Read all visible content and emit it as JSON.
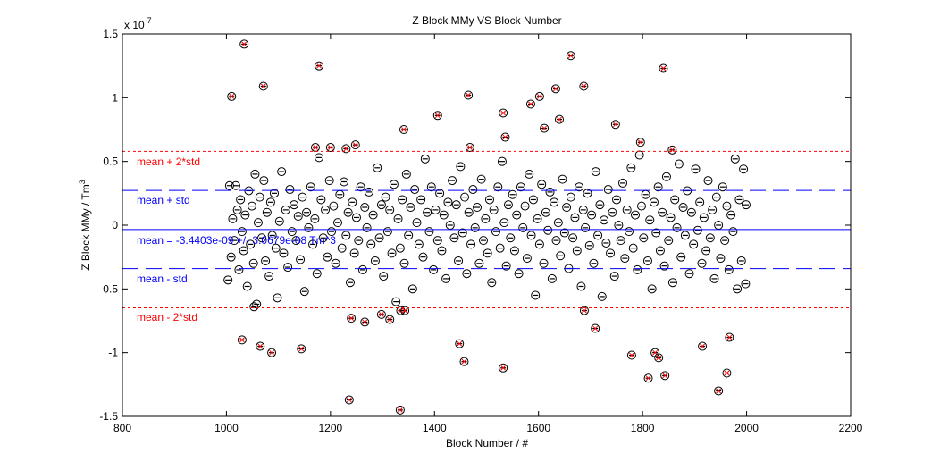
{
  "chart_data": {
    "type": "scatter",
    "title": "Z Block MMy VS Block Number",
    "xlabel": "Block Number / #",
    "ylabel": "Z Block MMy / Tm",
    "ylabel_sup": "3",
    "y_exponent_label": "x 10",
    "y_exponent_power": "-7",
    "xlim": [
      800,
      2200
    ],
    "ylim": [
      -1.5,
      1.5
    ],
    "xticks": [
      "800",
      "1000",
      "1200",
      "1400",
      "1600",
      "1800",
      "2000",
      "2200"
    ],
    "yticks": [
      "-1.5",
      "-1",
      "-0.5",
      "0",
      "0.5",
      "1",
      "1.5"
    ],
    "grid": false,
    "stats": {
      "mean": -0.034403,
      "std": 0.30679,
      "mean_label": "mean = -3.4403e-09 +/- 3.0679e-08  Tm^3",
      "plus_std_label": "mean + std",
      "minus_std_label": "mean - std",
      "plus_2std_label": "mean + 2*std",
      "minus_2std_label": "mean - 2*std"
    },
    "colors": {
      "points": "#000000",
      "outlier_mark": "#ff0000",
      "mean": "#0000ff",
      "std": "#0000ff",
      "two_std": "#ff0000"
    },
    "outliers": [
      [
        1010,
        1.01
      ],
      [
        1034,
        1.42
      ],
      [
        1071,
        1.09
      ],
      [
        1178,
        1.25
      ],
      [
        1171,
        0.61
      ],
      [
        1200,
        0.61
      ],
      [
        1230,
        0.6
      ],
      [
        1248,
        0.63
      ],
      [
        1341,
        0.75
      ],
      [
        1406,
        0.86
      ],
      [
        1465,
        1.02
      ],
      [
        1468,
        0.61
      ],
      [
        1532,
        0.88
      ],
      [
        1536,
        0.69
      ],
      [
        1585,
        0.95
      ],
      [
        1602,
        1.01
      ],
      [
        1611,
        0.76
      ],
      [
        1633,
        1.07
      ],
      [
        1640,
        0.83
      ],
      [
        1662,
        1.33
      ],
      [
        1687,
        1.09
      ],
      [
        1748,
        0.79
      ],
      [
        1796,
        0.65
      ],
      [
        1840,
        1.23
      ],
      [
        1857,
        0.59
      ],
      [
        1030,
        -0.9
      ],
      [
        1065,
        -0.95
      ],
      [
        1087,
        -1.0
      ],
      [
        1144,
        -0.97
      ],
      [
        1240,
        -0.73
      ],
      [
        1266,
        -0.76
      ],
      [
        1298,
        -0.7
      ],
      [
        1314,
        -0.74
      ],
      [
        1335,
        -0.67
      ],
      [
        1343,
        -0.67
      ],
      [
        1236,
        -1.37
      ],
      [
        1334,
        -1.45
      ],
      [
        1448,
        -0.93
      ],
      [
        1457,
        -1.07
      ],
      [
        1532,
        -1.12
      ],
      [
        1688,
        -0.67
      ],
      [
        1709,
        -0.81
      ],
      [
        1779,
        -1.02
      ],
      [
        1811,
        -1.2
      ],
      [
        1824,
        -1.0
      ],
      [
        1831,
        -1.04
      ],
      [
        1843,
        -1.18
      ],
      [
        1915,
        -0.95
      ],
      [
        1946,
        -1.3
      ],
      [
        1962,
        -1.16
      ],
      [
        1967,
        -0.88
      ]
    ],
    "points": [
      [
        1003,
        -0.43
      ],
      [
        1006,
        0.31
      ],
      [
        1009,
        -0.25
      ],
      [
        1012,
        0.05
      ],
      [
        1015,
        -0.12
      ],
      [
        1018,
        0.31
      ],
      [
        1021,
        0.12
      ],
      [
        1024,
        -0.35
      ],
      [
        1027,
        0.2
      ],
      [
        1030,
        -0.05
      ],
      [
        1033,
        -0.2
      ],
      [
        1036,
        0.08
      ],
      [
        1040,
        -0.48
      ],
      [
        1043,
        0.27
      ],
      [
        1046,
        -0.15
      ],
      [
        1049,
        0.15
      ],
      [
        1052,
        -0.3
      ],
      [
        1053,
        -0.64
      ],
      [
        1055,
        0.4
      ],
      [
        1058,
        -0.62
      ],
      [
        1061,
        0.02
      ],
      [
        1064,
        0.22
      ],
      [
        1068,
        -0.1
      ],
      [
        1072,
        0.35
      ],
      [
        1075,
        -0.28
      ],
      [
        1078,
        0.1
      ],
      [
        1082,
        -0.4
      ],
      [
        1085,
        0.18
      ],
      [
        1088,
        -0.08
      ],
      [
        1092,
        0.25
      ],
      [
        1095,
        -0.18
      ],
      [
        1098,
        -0.57
      ],
      [
        1102,
        0.03
      ],
      [
        1106,
        0.42
      ],
      [
        1110,
        -0.22
      ],
      [
        1114,
        0.12
      ],
      [
        1118,
        -0.33
      ],
      [
        1122,
        0.28
      ],
      [
        1126,
        -0.05
      ],
      [
        1130,
        0.16
      ],
      [
        1134,
        -0.12
      ],
      [
        1138,
        0.07
      ],
      [
        1142,
        -0.27
      ],
      [
        1146,
        0.22
      ],
      [
        1150,
        -0.52
      ],
      [
        1154,
        0.1
      ],
      [
        1158,
        -0.02
      ],
      [
        1162,
        0.3
      ],
      [
        1166,
        -0.15
      ],
      [
        1170,
        0.05
      ],
      [
        1174,
        -0.38
      ],
      [
        1178,
        0.53
      ],
      [
        1182,
        0.2
      ],
      [
        1186,
        -0.1
      ],
      [
        1190,
        0.12
      ],
      [
        1194,
        -0.25
      ],
      [
        1198,
        0.35
      ],
      [
        1202,
        -0.05
      ],
      [
        1206,
        0.15
      ],
      [
        1210,
        -0.3
      ],
      [
        1214,
        0.02
      ],
      [
        1218,
        0.24
      ],
      [
        1222,
        -0.18
      ],
      [
        1226,
        0.34
      ],
      [
        1230,
        -0.08
      ],
      [
        1234,
        0.1
      ],
      [
        1238,
        -0.45
      ],
      [
        1242,
        0.18
      ],
      [
        1246,
        -0.22
      ],
      [
        1250,
        0.06
      ],
      [
        1254,
        -0.12
      ],
      [
        1258,
        0.3
      ],
      [
        1262,
        -0.35
      ],
      [
        1266,
        0.14
      ],
      [
        1270,
        -0.02
      ],
      [
        1274,
        0.26
      ],
      [
        1278,
        -0.15
      ],
      [
        1282,
        0.08
      ],
      [
        1286,
        -0.28
      ],
      [
        1290,
        0.45
      ],
      [
        1294,
        -0.1
      ],
      [
        1298,
        0.16
      ],
      [
        1302,
        -0.4
      ],
      [
        1306,
        0.22
      ],
      [
        1310,
        -0.05
      ],
      [
        1314,
        0.12
      ],
      [
        1318,
        -0.22
      ],
      [
        1322,
        0.32
      ],
      [
        1326,
        -0.6
      ],
      [
        1330,
        0.05
      ],
      [
        1334,
        -0.18
      ],
      [
        1338,
        0.2
      ],
      [
        1342,
        -0.3
      ],
      [
        1346,
        0.4
      ],
      [
        1350,
        -0.08
      ],
      [
        1354,
        0.14
      ],
      [
        1358,
        -0.5
      ],
      [
        1362,
        0.28
      ],
      [
        1366,
        0.02
      ],
      [
        1370,
        -0.15
      ],
      [
        1374,
        0.2
      ],
      [
        1378,
        -0.25
      ],
      [
        1382,
        0.52
      ],
      [
        1386,
        0.1
      ],
      [
        1390,
        -0.05
      ],
      [
        1394,
        0.3
      ],
      [
        1398,
        -0.35
      ],
      [
        1402,
        0.12
      ],
      [
        1406,
        -0.12
      ],
      [
        1410,
        0.25
      ],
      [
        1414,
        -0.2
      ],
      [
        1418,
        0.08
      ],
      [
        1422,
        -0.42
      ],
      [
        1426,
        0.18
      ],
      [
        1430,
        0.0
      ],
      [
        1434,
        0.35
      ],
      [
        1438,
        -0.1
      ],
      [
        1442,
        0.16
      ],
      [
        1446,
        -0.28
      ],
      [
        1450,
        0.46
      ],
      [
        1454,
        -0.06
      ],
      [
        1458,
        0.22
      ],
      [
        1462,
        -0.38
      ],
      [
        1466,
        0.1
      ],
      [
        1470,
        -0.15
      ],
      [
        1474,
        0.28
      ],
      [
        1478,
        -0.02
      ],
      [
        1482,
        0.14
      ],
      [
        1486,
        -0.3
      ],
      [
        1490,
        0.36
      ],
      [
        1494,
        -0.12
      ],
      [
        1498,
        0.05
      ],
      [
        1502,
        -0.22
      ],
      [
        1506,
        0.2
      ],
      [
        1510,
        -0.45
      ],
      [
        1514,
        0.12
      ],
      [
        1518,
        -0.05
      ],
      [
        1522,
        0.3
      ],
      [
        1526,
        -0.18
      ],
      [
        1530,
        0.5
      ],
      [
        1534,
        0.02
      ],
      [
        1538,
        -0.32
      ],
      [
        1542,
        0.16
      ],
      [
        1546,
        -0.1
      ],
      [
        1550,
        0.24
      ],
      [
        1554,
        -0.2
      ],
      [
        1558,
        0.08
      ],
      [
        1562,
        -0.38
      ],
      [
        1566,
        0.3
      ],
      [
        1570,
        -0.02
      ],
      [
        1574,
        0.15
      ],
      [
        1578,
        -0.26
      ],
      [
        1582,
        0.4
      ],
      [
        1586,
        -0.08
      ],
      [
        1590,
        0.2
      ],
      [
        1594,
        -0.55
      ],
      [
        1598,
        0.05
      ],
      [
        1602,
        -0.15
      ],
      [
        1606,
        0.32
      ],
      [
        1610,
        -0.3
      ],
      [
        1614,
        0.1
      ],
      [
        1618,
        -0.04
      ],
      [
        1622,
        0.26
      ],
      [
        1626,
        -0.42
      ],
      [
        1630,
        0.18
      ],
      [
        1634,
        -0.12
      ],
      [
        1638,
        0.02
      ],
      [
        1642,
        -0.24
      ],
      [
        1646,
        0.36
      ],
      [
        1650,
        -0.06
      ],
      [
        1654,
        0.14
      ],
      [
        1658,
        -0.34
      ],
      [
        1662,
        0.22
      ],
      [
        1666,
        -0.1
      ],
      [
        1670,
        0.06
      ],
      [
        1674,
        -0.2
      ],
      [
        1678,
        0.3
      ],
      [
        1682,
        -0.48
      ],
      [
        1686,
        0.12
      ],
      [
        1690,
        -0.02
      ],
      [
        1694,
        0.25
      ],
      [
        1698,
        -0.16
      ],
      [
        1702,
        0.08
      ],
      [
        1706,
        -0.3
      ],
      [
        1710,
        0.42
      ],
      [
        1714,
        -0.08
      ],
      [
        1718,
        0.16
      ],
      [
        1722,
        -0.56
      ],
      [
        1726,
        0.04
      ],
      [
        1730,
        -0.14
      ],
      [
        1734,
        0.28
      ],
      [
        1738,
        -0.22
      ],
      [
        1742,
        0.1
      ],
      [
        1746,
        -0.4
      ],
      [
        1750,
        0.2
      ],
      [
        1754,
        0.0
      ],
      [
        1758,
        -0.12
      ],
      [
        1762,
        0.33
      ],
      [
        1766,
        -0.26
      ],
      [
        1770,
        0.12
      ],
      [
        1774,
        -0.05
      ],
      [
        1778,
        0.45
      ],
      [
        1782,
        -0.18
      ],
      [
        1786,
        0.08
      ],
      [
        1790,
        -0.35
      ],
      [
        1794,
        0.55
      ],
      [
        1798,
        0.15
      ],
      [
        1802,
        -0.1
      ],
      [
        1806,
        0.24
      ],
      [
        1810,
        -0.28
      ],
      [
        1814,
        0.04
      ],
      [
        1818,
        -0.5
      ],
      [
        1822,
        0.18
      ],
      [
        1826,
        -0.06
      ],
      [
        1830,
        0.3
      ],
      [
        1834,
        -0.2
      ],
      [
        1838,
        0.1
      ],
      [
        1842,
        -0.32
      ],
      [
        1846,
        0.38
      ],
      [
        1850,
        -0.12
      ],
      [
        1854,
        0.06
      ],
      [
        1858,
        -0.45
      ],
      [
        1862,
        0.2
      ],
      [
        1866,
        -0.02
      ],
      [
        1870,
        0.48
      ],
      [
        1874,
        -0.25
      ],
      [
        1878,
        0.14
      ],
      [
        1882,
        -0.08
      ],
      [
        1886,
        0.27
      ],
      [
        1890,
        -0.38
      ],
      [
        1894,
        0.1
      ],
      [
        1898,
        -0.15
      ],
      [
        1902,
        0.44
      ],
      [
        1906,
        -0.04
      ],
      [
        1910,
        0.18
      ],
      [
        1914,
        -0.3
      ],
      [
        1918,
        0.06
      ],
      [
        1922,
        -0.2
      ],
      [
        1926,
        0.35
      ],
      [
        1930,
        -0.1
      ],
      [
        1934,
        0.12
      ],
      [
        1938,
        -0.42
      ],
      [
        1942,
        0.22
      ],
      [
        1946,
        0.0
      ],
      [
        1950,
        -0.26
      ],
      [
        1954,
        0.3
      ],
      [
        1958,
        -0.12
      ],
      [
        1962,
        0.15
      ],
      [
        1966,
        -0.35
      ],
      [
        1970,
        0.08
      ],
      [
        1974,
        -0.05
      ],
      [
        1978,
        0.52
      ],
      [
        1982,
        -0.5
      ],
      [
        1986,
        0.2
      ],
      [
        1990,
        -0.28
      ],
      [
        1994,
        0.44
      ],
      [
        1998,
        -0.46
      ],
      [
        1999,
        0.16
      ]
    ]
  }
}
